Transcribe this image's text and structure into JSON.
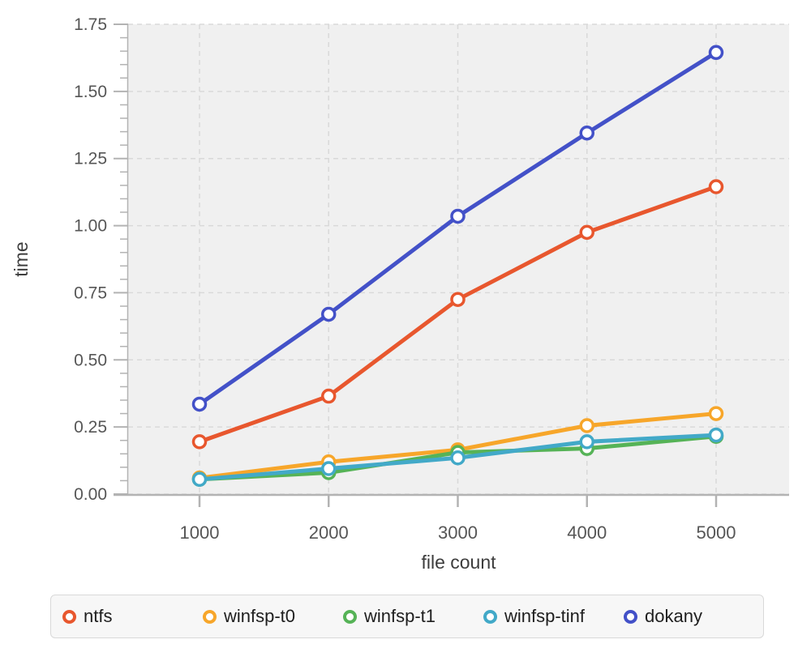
{
  "chart_data": {
    "type": "line",
    "title": "",
    "xlabel": "file count",
    "ylabel": "time",
    "x": [
      1000,
      2000,
      3000,
      4000,
      5000
    ],
    "x_tick_labels": [
      "1000",
      "2000",
      "3000",
      "4000",
      "5000"
    ],
    "series": [
      {
        "name": "ntfs",
        "color": "#e8572e",
        "values": [
          0.195,
          0.365,
          0.725,
          0.975,
          1.145
        ]
      },
      {
        "name": "winfsp-t0",
        "color": "#f7a62a",
        "values": [
          0.06,
          0.12,
          0.165,
          0.255,
          0.3
        ]
      },
      {
        "name": "winfsp-t1",
        "color": "#56b357",
        "values": [
          0.055,
          0.08,
          0.155,
          0.17,
          0.215
        ]
      },
      {
        "name": "winfsp-tinf",
        "color": "#42a9c8",
        "values": [
          0.055,
          0.095,
          0.135,
          0.195,
          0.22
        ]
      },
      {
        "name": "dokany",
        "color": "#4351c8",
        "values": [
          0.335,
          0.67,
          1.035,
          1.345,
          1.645
        ]
      }
    ],
    "ylim": [
      0,
      1.75
    ],
    "y_major_step": 0.25,
    "y_minor_step": 0.05,
    "y_tick_labels": [
      "0.00",
      "0.25",
      "0.50",
      "0.75",
      "1.00",
      "1.25",
      "1.50",
      "1.75"
    ],
    "grid": "dashed",
    "legend_position": "bottom",
    "marker": "open-circle",
    "colors": {
      "plot_background": "#f0f0f0",
      "gridline": "#d9d9d9",
      "axis": "#b3b3b3",
      "tick_label": "#565656",
      "axis_title": "#3d3d3d",
      "legend_text": "#1e1e1e",
      "legend_background": "#f7f7f7",
      "legend_border": "#d9d9d9",
      "marker_fill": "#ffffff"
    }
  }
}
